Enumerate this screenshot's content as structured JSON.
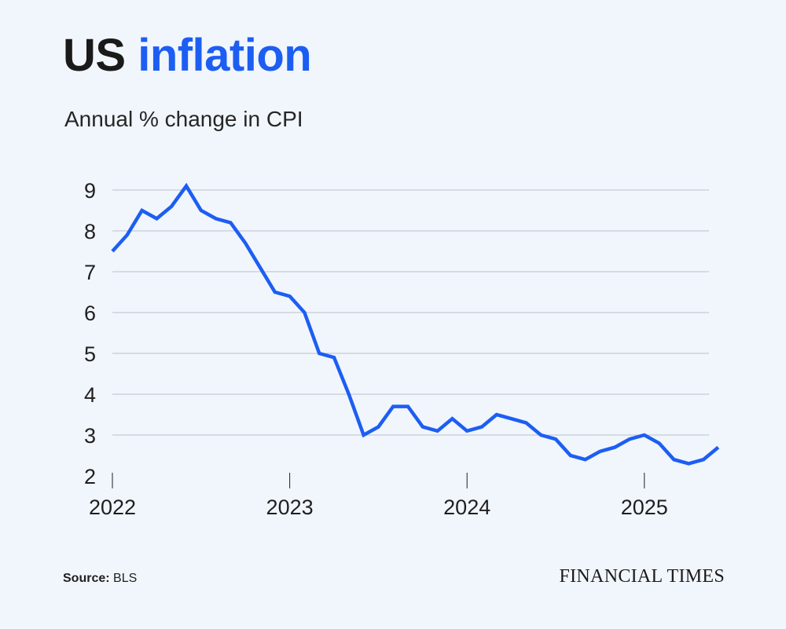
{
  "header": {
    "title_part1": "US",
    "title_part2": "inflation",
    "subtitle": "Annual % change in CPI"
  },
  "footer": {
    "source_label": "Source:",
    "source_value": "BLS",
    "brand": "FINANCIAL TIMES"
  },
  "colors": {
    "background": "#f1f6fc",
    "accent": "#1d5ef2",
    "grid": "#b9c0cc"
  },
  "chart_data": {
    "type": "line",
    "title": "US inflation",
    "subtitle": "Annual % change in CPI",
    "xlabel": "",
    "ylabel": "",
    "ylim": [
      2,
      9
    ],
    "yticks": [
      2,
      3,
      4,
      5,
      6,
      7,
      8,
      9
    ],
    "xticks": [
      "2022",
      "2023",
      "2024",
      "2025"
    ],
    "grid": true,
    "x_start": "2022-01",
    "series": [
      {
        "name": "Annual % change in CPI",
        "values": [
          7.5,
          7.9,
          8.5,
          8.3,
          8.6,
          9.1,
          8.5,
          8.3,
          8.2,
          7.7,
          7.1,
          6.5,
          6.4,
          6.0,
          5.0,
          4.9,
          4.0,
          3.0,
          3.2,
          3.7,
          3.7,
          3.2,
          3.1,
          3.4,
          3.1,
          3.2,
          3.5,
          3.4,
          3.3,
          3.0,
          2.9,
          2.5,
          2.4,
          2.6,
          2.7,
          2.9,
          3.0,
          2.8,
          2.4,
          2.3,
          2.4,
          2.7
        ]
      }
    ]
  }
}
